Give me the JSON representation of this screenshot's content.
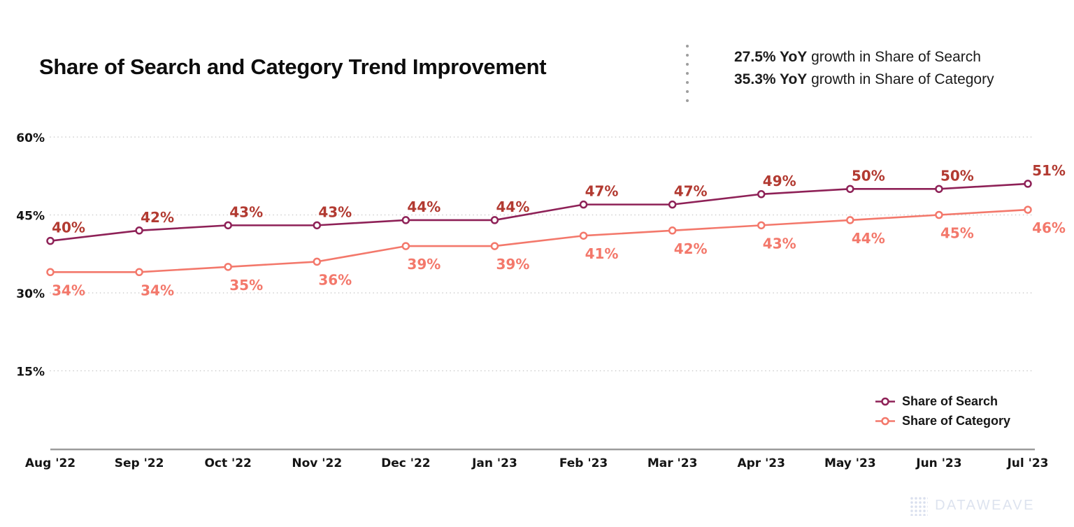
{
  "title": "Share of Search and Category Trend Improvement",
  "annotation": {
    "lines": [
      {
        "bold": "27.5% YoY",
        "rest": " growth in Share of Search"
      },
      {
        "bold": "35.3% YoY",
        "rest": " growth in Share of Category"
      }
    ]
  },
  "chart_data": {
    "type": "line",
    "title": "Share of Search and Category Trend Improvement",
    "categories": [
      "Aug '22",
      "Sep '22",
      "Oct '22",
      "Nov '22",
      "Dec '22",
      "Jan '23",
      "Feb '23",
      "Mar '23",
      "Apr '23",
      "May '23",
      "Jun '23",
      "Jul '23"
    ],
    "series": [
      {
        "name": "Share of Search",
        "color": "#8e2157",
        "label_color": "#b23a31",
        "label_position": "above",
        "values": [
          40,
          42,
          43,
          43,
          44,
          44,
          47,
          47,
          49,
          50,
          50,
          51
        ],
        "marker": "open-circle",
        "data_label_format": "{v}%"
      },
      {
        "name": "Share of Category",
        "color": "#f3786b",
        "label_color": "#f3786b",
        "label_position": "below",
        "values": [
          34,
          34,
          35,
          36,
          39,
          39,
          41,
          42,
          43,
          44,
          45,
          46
        ],
        "marker": "open-circle",
        "data_label_format": "{v}%"
      }
    ],
    "xlabel": "",
    "ylabel": "",
    "y_ticks": [
      15,
      30,
      45,
      60
    ],
    "y_tick_format": "{v}%",
    "ylim": [
      0,
      63
    ],
    "grid": "horizontal-dotted",
    "legend_position": "bottom-right"
  },
  "watermark": {
    "text": "DATAWEAVE"
  }
}
